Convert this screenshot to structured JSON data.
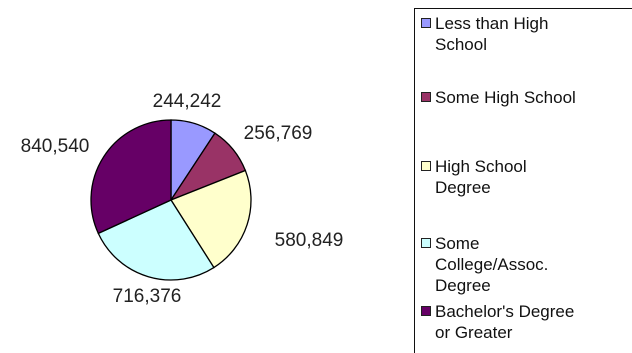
{
  "chart_data": {
    "type": "pie",
    "title": "",
    "categories": [
      "Less than High School",
      "Some High School",
      "High School Degree",
      "Some College/Assoc. Degree",
      "Bachelor's Degree or Greater"
    ],
    "values": [
      244242,
      256769,
      580849,
      716376,
      840540
    ],
    "data_labels": [
      "244,242",
      "256,769",
      "580,849",
      "716,376",
      "840,540"
    ],
    "colors": [
      "#9999ff",
      "#993366",
      "#ffffcc",
      "#ccffff",
      "#660066"
    ],
    "legend_position": "right"
  },
  "legend": {
    "items": [
      {
        "label": "Less than High\nSchool",
        "color": "#9999ff"
      },
      {
        "label": "Some High School",
        "color": "#993366"
      },
      {
        "label": "High School\nDegree",
        "color": "#ffffcc"
      },
      {
        "label": "Some\nCollege/Assoc.\nDegree",
        "color": "#ccffff"
      },
      {
        "label": "Bachelor's Degree\nor Greater",
        "color": "#660066"
      }
    ]
  }
}
